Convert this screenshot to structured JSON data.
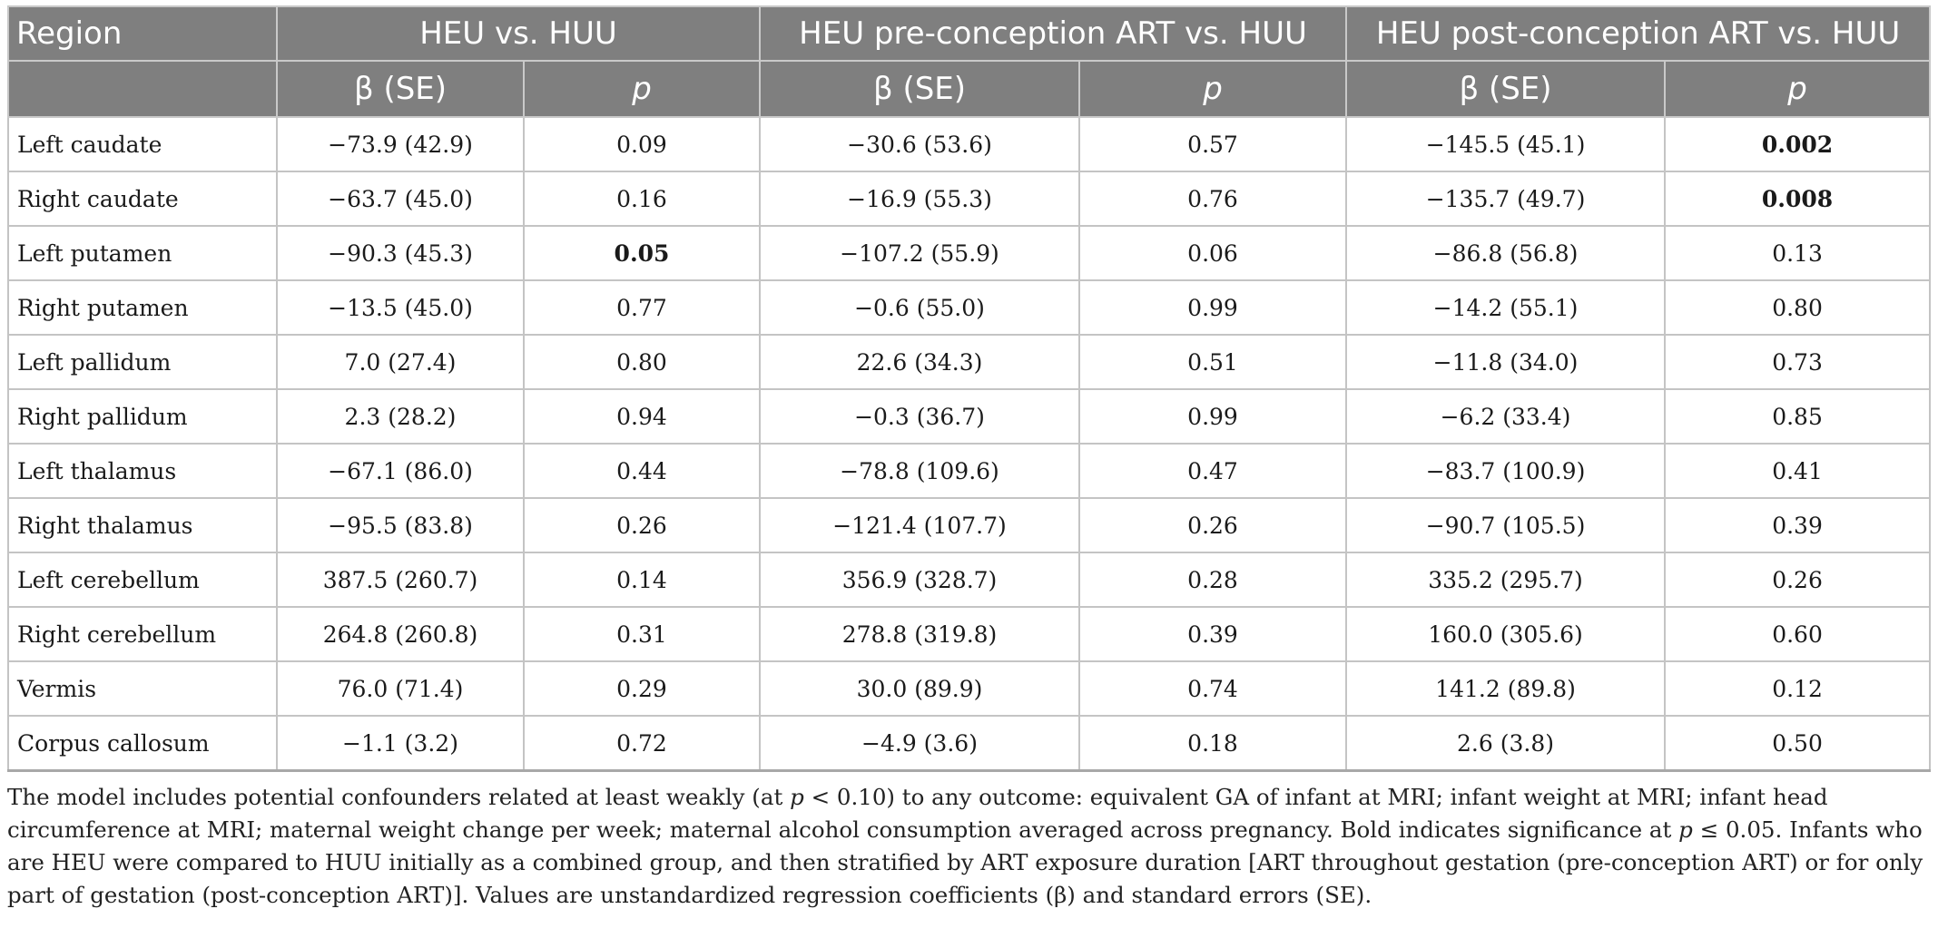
{
  "table": {
    "group_headers": {
      "region": "Region",
      "g1": "HEU vs. HUU",
      "g2": "HEU pre-conception ART vs. HUU",
      "g3": "HEU post-conception ART vs. HUU"
    },
    "sub_headers": {
      "beta_se": "β (SE)",
      "p": "p"
    },
    "rows": [
      {
        "region": "Left caudate",
        "b1": "−73.9 (42.9)",
        "p1": "0.09",
        "b2": "−30.6 (53.6)",
        "p2": "0.57",
        "b3": "−145.5 (45.1)",
        "p3": "0.002"
      },
      {
        "region": "Right caudate",
        "b1": "−63.7 (45.0)",
        "p1": "0.16",
        "b2": "−16.9 (55.3)",
        "p2": "0.76",
        "b3": "−135.7 (49.7)",
        "p3": "0.008"
      },
      {
        "region": "Left putamen",
        "b1": "−90.3 (45.3)",
        "p1": "0.05",
        "b2": "−107.2 (55.9)",
        "p2": "0.06",
        "b3": "−86.8 (56.8)",
        "p3": "0.13"
      },
      {
        "region": "Right putamen",
        "b1": "−13.5 (45.0)",
        "p1": "0.77",
        "b2": "−0.6 (55.0)",
        "p2": "0.99",
        "b3": "−14.2 (55.1)",
        "p3": "0.80"
      },
      {
        "region": "Left pallidum",
        "b1": "7.0 (27.4)",
        "p1": "0.80",
        "b2": "22.6 (34.3)",
        "p2": "0.51",
        "b3": "−11.8 (34.0)",
        "p3": "0.73"
      },
      {
        "region": "Right pallidum",
        "b1": "2.3 (28.2)",
        "p1": "0.94",
        "b2": "−0.3 (36.7)",
        "p2": "0.99",
        "b3": "−6.2 (33.4)",
        "p3": "0.85"
      },
      {
        "region": "Left thalamus",
        "b1": "−67.1 (86.0)",
        "p1": "0.44",
        "b2": "−78.8 (109.6)",
        "p2": "0.47",
        "b3": "−83.7 (100.9)",
        "p3": "0.41"
      },
      {
        "region": "Right thalamus",
        "b1": "−95.5 (83.8)",
        "p1": "0.26",
        "b2": "−121.4 (107.7)",
        "p2": "0.26",
        "b3": "−90.7 (105.5)",
        "p3": "0.39"
      },
      {
        "region": "Left cerebellum",
        "b1": "387.5 (260.7)",
        "p1": "0.14",
        "b2": "356.9 (328.7)",
        "p2": "0.28",
        "b3": "335.2 (295.7)",
        "p3": "0.26"
      },
      {
        "region": "Right cerebellum",
        "b1": "264.8 (260.8)",
        "p1": "0.31",
        "b2": "278.8 (319.8)",
        "p2": "0.39",
        "b3": "160.0 (305.6)",
        "p3": "0.60"
      },
      {
        "region": "Vermis",
        "b1": "76.0 (71.4)",
        "p1": "0.29",
        "b2": "30.0 (89.9)",
        "p2": "0.74",
        "b3": "141.2 (89.8)",
        "p3": "0.12"
      },
      {
        "region": "Corpus callosum",
        "b1": "−1.1 (3.2)",
        "p1": "0.72",
        "b2": "−4.9 (3.6)",
        "p2": "0.18",
        "b3": "2.6 (3.8)",
        "p3": "0.50"
      }
    ],
    "bold_cells": [
      "0.p3",
      "1.p3",
      "2.p1"
    ]
  },
  "footnote": {
    "part1": "The model includes potential confounders related at least weakly (at ",
    "p_symbol": "p",
    "part2": " < 0.10) to any outcome: equivalent GA of infant at MRI; infant weight at MRI; infant head circumference at MRI; maternal weight change per week; maternal alcohol consumption averaged across pregnancy. Bold indicates significance at ",
    "part3": " ≤ 0.05. Infants who are HEU were compared to HUU initially as a combined group, and then stratified by ART exposure duration [ART throughout gestation (pre-conception ART) or for only part of gestation (post-conception ART)]. Values are unstandardized regression coefficients (β) and standard errors (SE)."
  }
}
